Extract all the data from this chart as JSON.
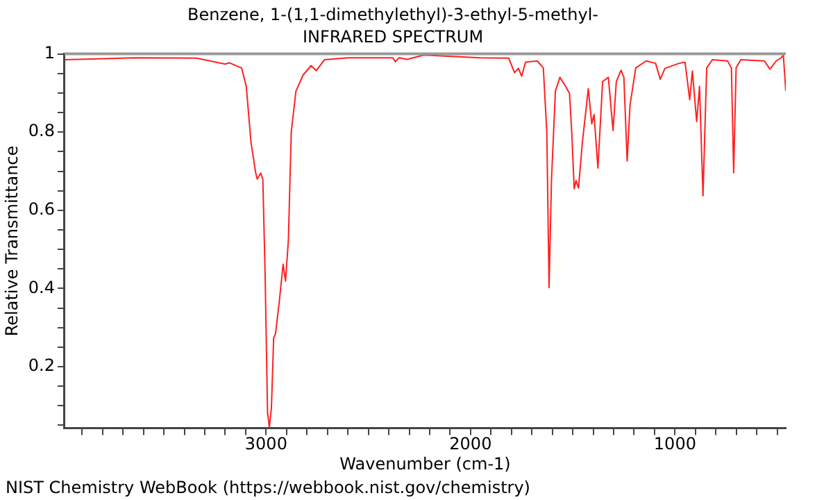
{
  "chart_data": {
    "type": "line",
    "title": "Benzene, 1-(1,1-dimethylethyl)-3-ethyl-5-methyl-",
    "subtitle": "INFRARED SPECTRUM",
    "xlabel": "Wavenumber (cm-1)",
    "ylabel": "Relative Transmittance",
    "annotations": [
      "NIST Chemistry WebBook (https://webbook.nist.gov/chemistry)"
    ],
    "xlim": [
      3986,
      458
    ],
    "ylim": [
      0.043,
      1
    ],
    "xticks": [
      {
        "value": 3900,
        "label": null
      },
      {
        "value": 3800,
        "label": null
      },
      {
        "value": 3700,
        "label": null
      },
      {
        "value": 3600,
        "label": null
      },
      {
        "value": 3500,
        "label": null
      },
      {
        "value": 3400,
        "label": null
      },
      {
        "value": 3300,
        "label": null
      },
      {
        "value": 3200,
        "label": null
      },
      {
        "value": 3100,
        "label": null
      },
      3000,
      {
        "value": 2900,
        "label": null
      },
      {
        "value": 2800,
        "label": null
      },
      {
        "value": 2700,
        "label": null
      },
      {
        "value": 2600,
        "label": null
      },
      {
        "value": 2500,
        "label": null
      },
      {
        "value": 2400,
        "label": null
      },
      {
        "value": 2300,
        "label": null
      },
      {
        "value": 2200,
        "label": null
      },
      {
        "value": 2100,
        "label": null
      },
      2000,
      {
        "value": 1900,
        "label": null
      },
      {
        "value": 1800,
        "label": null
      },
      {
        "value": 1700,
        "label": null
      },
      {
        "value": 1600,
        "label": null
      },
      {
        "value": 1500,
        "label": null
      },
      {
        "value": 1400,
        "label": null
      },
      {
        "value": 1300,
        "label": null
      },
      {
        "value": 1200,
        "label": null
      },
      {
        "value": 1100,
        "label": null
      },
      1000,
      {
        "value": 900,
        "label": null
      },
      {
        "value": 800,
        "label": null
      },
      {
        "value": 700,
        "label": null
      },
      {
        "value": 600,
        "label": null
      },
      {
        "value": 500,
        "label": null
      }
    ],
    "yticks": [
      {
        "value": 0.05,
        "label": null
      },
      {
        "value": 0.1,
        "label": null
      },
      {
        "value": 0.15,
        "label": null
      },
      0.2,
      {
        "value": 0.25,
        "label": null
      },
      {
        "value": 0.3,
        "label": null
      },
      {
        "value": 0.35,
        "label": null
      },
      0.4,
      {
        "value": 0.45,
        "label": null
      },
      {
        "value": 0.5,
        "label": null
      },
      {
        "value": 0.55,
        "label": null
      },
      0.6,
      {
        "value": 0.65,
        "label": null
      },
      {
        "value": 0.7,
        "label": null
      },
      {
        "value": 0.75,
        "label": null
      },
      0.8,
      {
        "value": 0.85,
        "label": null
      },
      {
        "value": 0.9,
        "label": null
      },
      {
        "value": 0.95,
        "label": null
      },
      1
    ],
    "grid": false,
    "legend": false,
    "marker": "none",
    "line_style": "solid",
    "x": [
      3983,
      3641,
      3340,
      3201,
      3178,
      3120,
      3097,
      3074,
      3051,
      3044,
      3026,
      3016,
      3005,
      2993,
      2984,
      2974,
      2963,
      2954,
      2935,
      2917,
      2905,
      2891,
      2877,
      2854,
      2819,
      2780,
      2755,
      2715,
      2600,
      2380,
      2368,
      2350,
      2310,
      2229,
      1951,
      1813,
      1785,
      1766,
      1750,
      1731,
      1674,
      1644,
      1627,
      1616,
      1604,
      1585,
      1563,
      1535,
      1516,
      1505,
      1493,
      1484,
      1472,
      1453,
      1424,
      1407,
      1396,
      1377,
      1354,
      1326,
      1303,
      1287,
      1264,
      1250,
      1234,
      1220,
      1192,
      1141,
      1095,
      1072,
      1049,
      979,
      951,
      928,
      915,
      894,
      880,
      863,
      845,
      817,
      743,
      724,
      713,
      701,
      678,
      563,
      535,
      505,
      481,
      470,
      458
    ],
    "series": [
      {
        "color": "#ff2020",
        "values": [
          0.985,
          0.99,
          0.989,
          0.974,
          0.977,
          0.964,
          0.917,
          0.774,
          0.696,
          0.68,
          0.695,
          0.679,
          0.44,
          0.083,
          0.045,
          0.095,
          0.274,
          0.284,
          0.369,
          0.462,
          0.419,
          0.524,
          0.8,
          0.905,
          0.946,
          0.97,
          0.957,
          0.985,
          0.99,
          0.99,
          0.98,
          0.99,
          0.986,
          0.997,
          0.99,
          0.989,
          0.952,
          0.963,
          0.943,
          0.979,
          0.982,
          0.964,
          0.8,
          0.402,
          0.679,
          0.905,
          0.94,
          0.917,
          0.899,
          0.8,
          0.655,
          0.676,
          0.657,
          0.774,
          0.911,
          0.821,
          0.845,
          0.708,
          0.929,
          0.94,
          0.804,
          0.929,
          0.958,
          0.94,
          0.726,
          0.869,
          0.964,
          0.982,
          0.976,
          0.935,
          0.963,
          0.976,
          0.979,
          0.883,
          0.956,
          0.827,
          0.917,
          0.637,
          0.964,
          0.985,
          0.982,
          0.964,
          0.696,
          0.964,
          0.985,
          0.982,
          0.961,
          0.982,
          0.99,
          0.997,
          0.905
        ]
      }
    ]
  }
}
